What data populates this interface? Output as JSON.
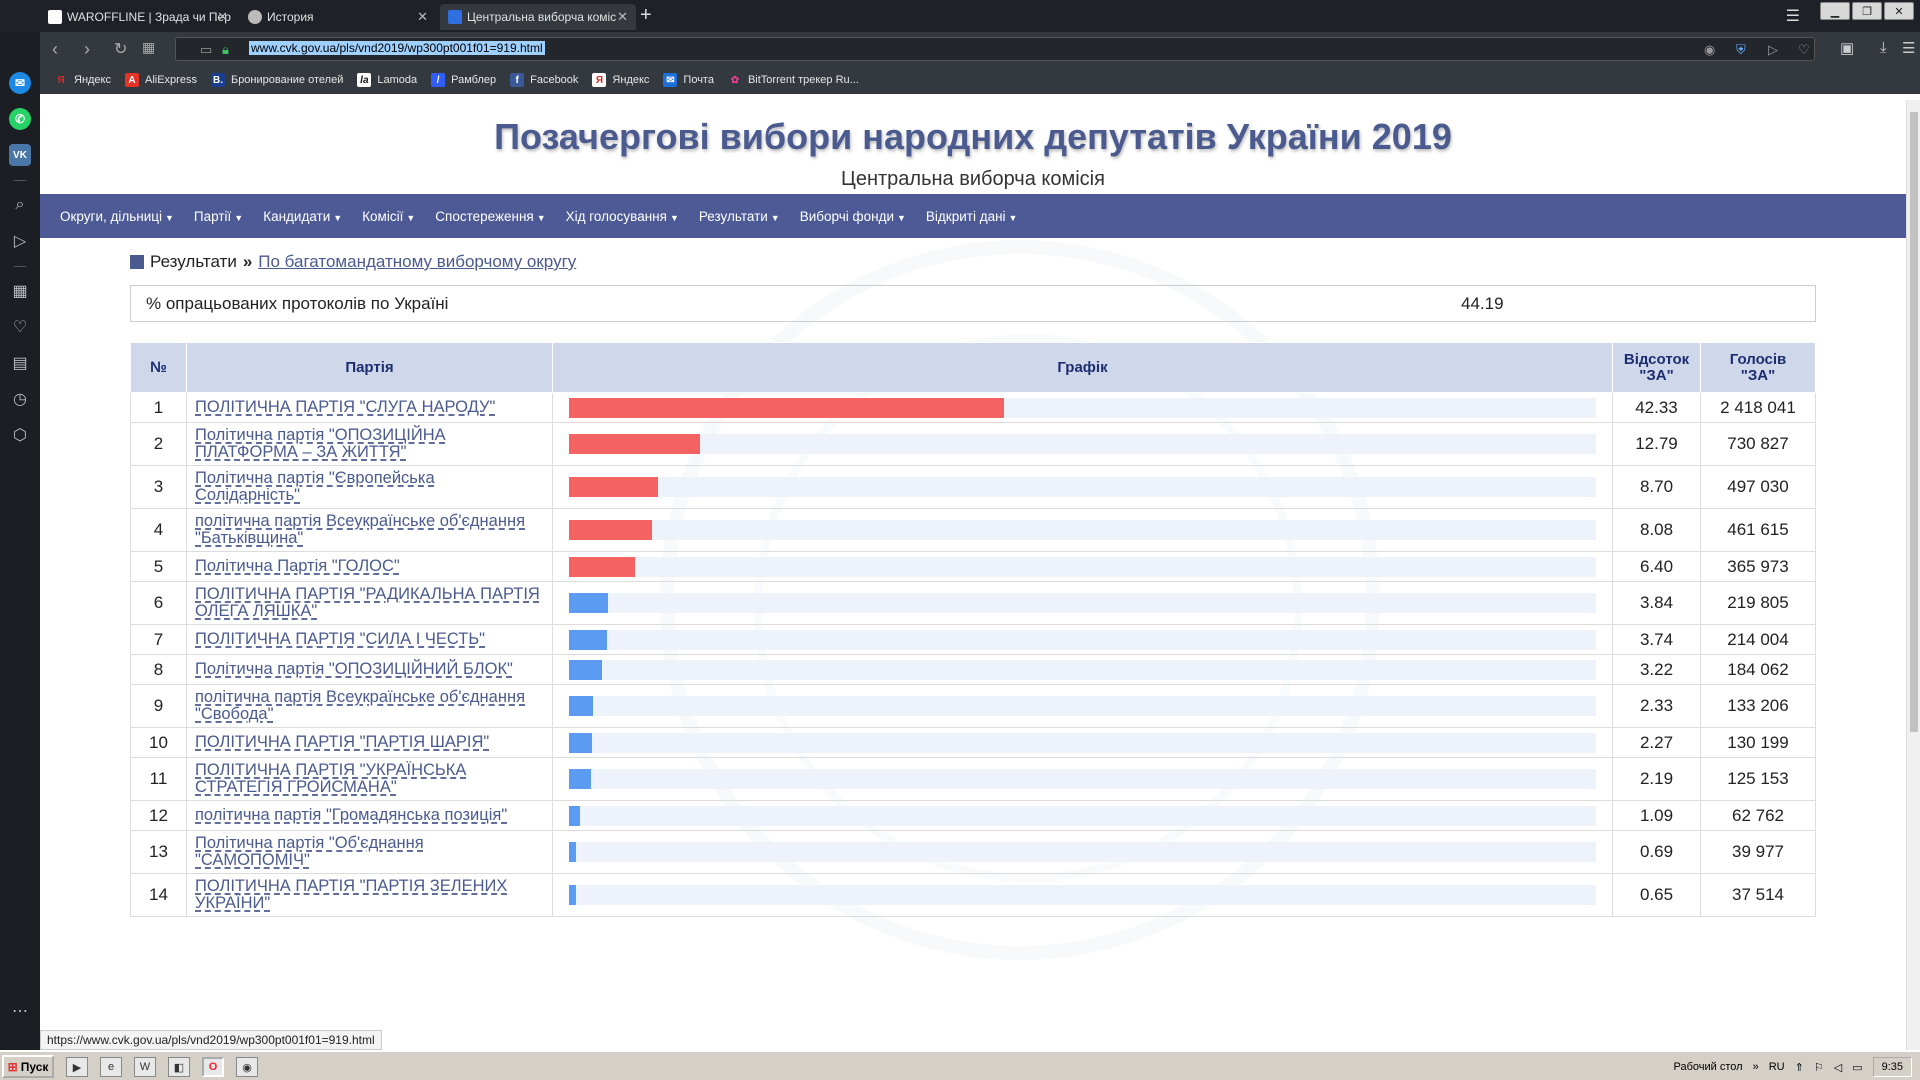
{
  "browser": {
    "tabs": [
      {
        "label": "WAROFFLINE | Зрада чи Пер",
        "icon_color": "#ffffff",
        "active": false
      },
      {
        "label": "История",
        "icon_color": "#bbbbbb",
        "active": false
      },
      {
        "label": "Центральна виборча коміс",
        "icon_color": "#2f6fe0",
        "active": true
      }
    ],
    "new_tab_symbol": "+",
    "url": "www.cvk.gov.ua/pls/vnd2019/wp300pt001f01=919.html",
    "bookmarks": [
      {
        "label": "Яндекс",
        "icon": "Я",
        "color": "#d92b2b"
      },
      {
        "label": "AliExpress",
        "icon": "A",
        "color": "#e43225"
      },
      {
        "label": "Бронирование отелей",
        "icon": "B.",
        "color": "#1a3d8f"
      },
      {
        "label": "Lamoda",
        "icon": "la",
        "color": "#111111"
      },
      {
        "label": "Рамблер",
        "icon": "/",
        "color": "#315efb"
      },
      {
        "label": "Facebook",
        "icon": "f",
        "color": "#3b5998"
      },
      {
        "label": "Яндекс",
        "icon": "Я",
        "color": "#d92b2b"
      },
      {
        "label": "Почта",
        "icon": "✉",
        "color": "#1d6fd8"
      },
      {
        "label": "BitTorrent трекер Ru...",
        "icon": "✿",
        "color": "#2e8b57"
      }
    ],
    "status_url": "https://www.cvk.gov.ua/pls/vnd2019/wp300pt001f01=919.html"
  },
  "header": {
    "title": "Позачергові вибори народних депутатів України 2019",
    "subtitle": "Центральна виборча комісія"
  },
  "nav": [
    {
      "label": "Округи, дільниці"
    },
    {
      "label": "Партії"
    },
    {
      "label": "Кандидати"
    },
    {
      "label": "Комісії"
    },
    {
      "label": "Спостереження"
    },
    {
      "label": "Хід голосування"
    },
    {
      "label": "Результати"
    },
    {
      "label": "Виборчі фонди"
    },
    {
      "label": "Відкриті дані"
    }
  ],
  "breadcrumb": {
    "root": "Результати",
    "current": "По багатомандатному виборчому округу"
  },
  "processed": {
    "label": "% опрацьованих протоколів по Україні",
    "value": "44.19"
  },
  "table": {
    "headers": {
      "num": "№",
      "party": "Партія",
      "graph": "Графік",
      "pct_line1": "Відсоток",
      "pct_line2": "\"ЗА\"",
      "votes_line1": "Голосів",
      "votes_line2": "\"ЗА\""
    },
    "rows": [
      {
        "num": "1",
        "party": "ПОЛІТИЧНА ПАРТІЯ \"СЛУГА НАРОДУ\"",
        "pct": "42.33",
        "votes": "2 418 041",
        "value": 42.33,
        "top": true
      },
      {
        "num": "2",
        "party": "Політична партія \"ОПОЗИЦІЙНА ПЛАТФОРМА – ЗА ЖИТТЯ\"",
        "pct": "12.79",
        "votes": "730 827",
        "value": 12.79,
        "top": true
      },
      {
        "num": "3",
        "party": "Політична партія \"Європейська Солідарність\"",
        "pct": "8.70",
        "votes": "497 030",
        "value": 8.7,
        "top": true
      },
      {
        "num": "4",
        "party": "політична партія Всеукраїнське об'єднання \"Батьківщина\"",
        "pct": "8.08",
        "votes": "461 615",
        "value": 8.08,
        "top": true
      },
      {
        "num": "5",
        "party": "Політична Партія \"ГОЛОС\"",
        "pct": "6.40",
        "votes": "365 973",
        "value": 6.4,
        "top": true
      },
      {
        "num": "6",
        "party": "ПОЛІТИЧНА ПАРТІЯ \"РАДИКАЛЬНА ПАРТІЯ ОЛЕГА ЛЯШКА\"",
        "pct": "3.84",
        "votes": "219 805",
        "value": 3.84,
        "top": false
      },
      {
        "num": "7",
        "party": "ПОЛІТИЧНА ПАРТІЯ \"СИЛА І ЧЕСТЬ\"",
        "pct": "3.74",
        "votes": "214 004",
        "value": 3.74,
        "top": false
      },
      {
        "num": "8",
        "party": "Політична партія \"ОПОЗИЦІЙНИЙ БЛОК\"",
        "pct": "3.22",
        "votes": "184 062",
        "value": 3.22,
        "top": false
      },
      {
        "num": "9",
        "party": "політична партія Всеукраїнське об'єднання \"Свобода\"",
        "pct": "2.33",
        "votes": "133 206",
        "value": 2.33,
        "top": false
      },
      {
        "num": "10",
        "party": "ПОЛІТИЧНА ПАРТІЯ \"ПАРТІЯ ШАРІЯ\"",
        "pct": "2.27",
        "votes": "130 199",
        "value": 2.27,
        "top": false
      },
      {
        "num": "11",
        "party": "ПОЛІТИЧНА ПАРТІЯ \"УКРАЇНСЬКА СТРАТЕГІЯ ГРОЙСМАНА\"",
        "pct": "2.19",
        "votes": "125 153",
        "value": 2.19,
        "top": false
      },
      {
        "num": "12",
        "party": "політична партія \"Громадянська позиція\"",
        "pct": "1.09",
        "votes": "62 762",
        "value": 1.09,
        "top": false
      },
      {
        "num": "13",
        "party": "Політична партія \"Об'єднання \"САМОПОМІЧ\"",
        "pct": "0.69",
        "votes": "39 977",
        "value": 0.69,
        "top": false
      },
      {
        "num": "14",
        "party": "ПОЛІТИЧНА ПАРТІЯ \"ПАРТІЯ ЗЕЛЕНИХ УКРАЇНИ\"",
        "pct": "0.65",
        "votes": "37 514",
        "value": 0.65,
        "top": false
      }
    ],
    "bar_scale_max": 100,
    "colors": {
      "top": "#f46262",
      "other": "#5b9cf2",
      "track": "#eef3fb"
    }
  },
  "taskbar": {
    "start_label": "Пуск",
    "desktop_label": "Рабочий стол",
    "lang": "RU",
    "time": "9:35"
  }
}
